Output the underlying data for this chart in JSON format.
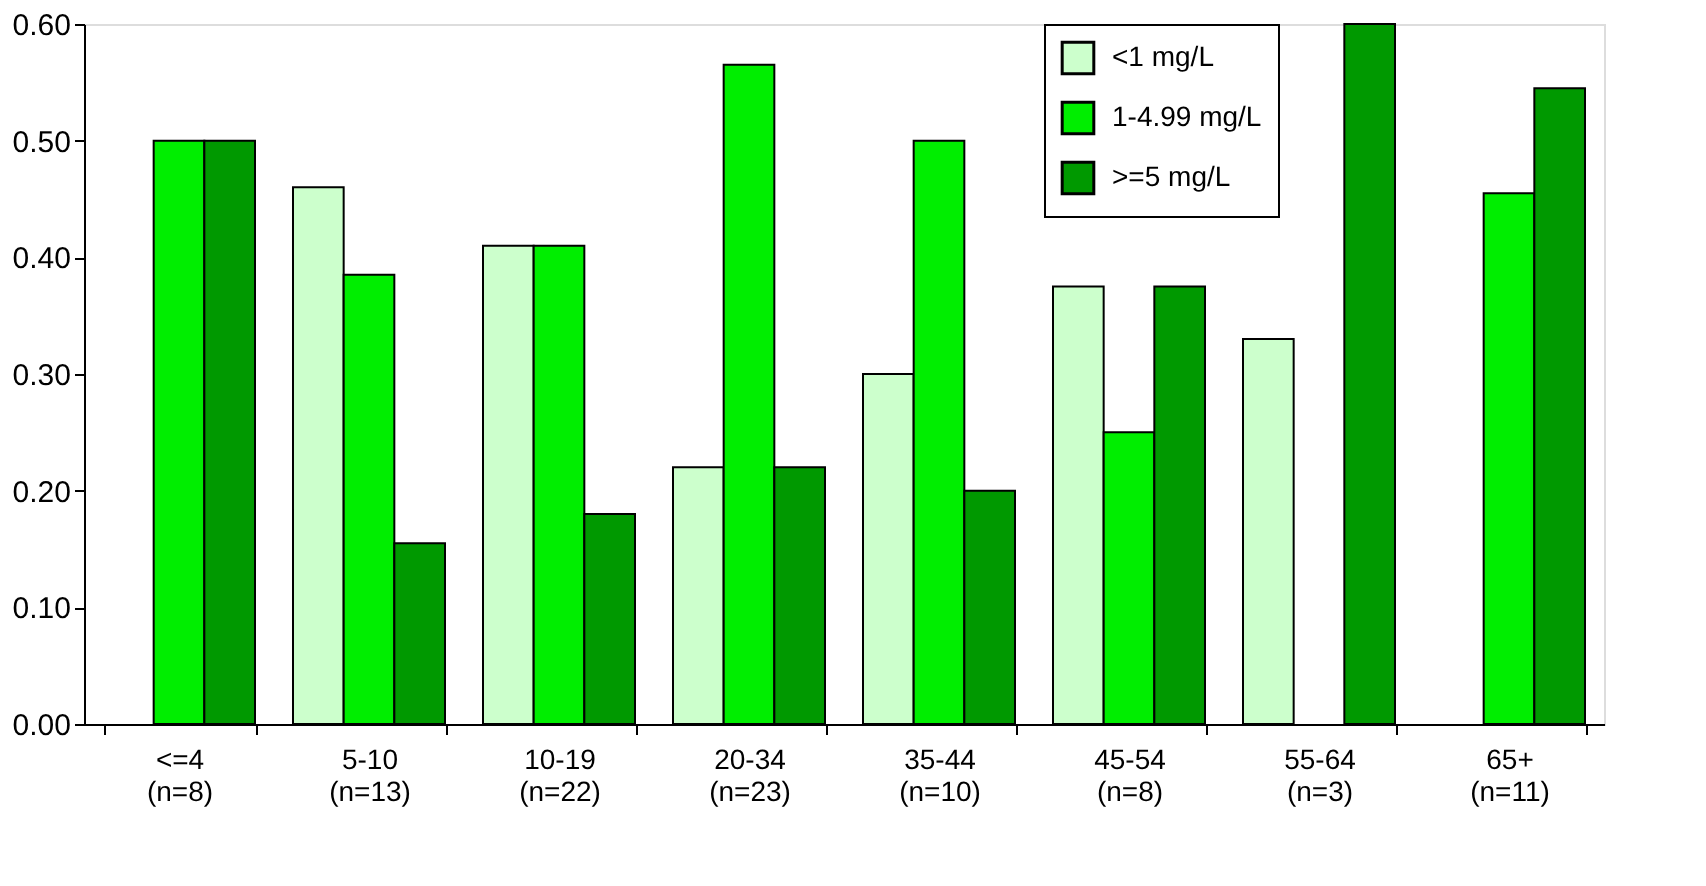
{
  "chart_data": {
    "type": "bar",
    "categories": [
      "<=4\n(n=8)",
      "5-10\n(n=13)",
      "10-19\n(n=22)",
      "20-34\n(n=23)",
      "35-44\n(n=10)",
      "45-54\n(n=8)",
      "55-64\n(n=3)",
      "65+\n(n=11)"
    ],
    "series": [
      {
        "name": "<1 mg/L",
        "color": "#ccffcc",
        "values": [
          null,
          0.46,
          0.41,
          0.22,
          0.3,
          0.375,
          0.33,
          null
        ]
      },
      {
        "name": "1-4.99 mg/L",
        "color": "#00ee00",
        "values": [
          0.5,
          0.385,
          0.41,
          0.565,
          0.5,
          0.25,
          null,
          0.455
        ]
      },
      {
        "name": ">=5 mg/L",
        "color": "#009900",
        "values": [
          0.5,
          0.155,
          0.18,
          0.22,
          0.2,
          0.375,
          0.6,
          0.545
        ]
      }
    ],
    "ylim": [
      0,
      0.6
    ],
    "yticks": [
      {
        "value": 0,
        "label": "0.00"
      },
      {
        "value": 0.1,
        "label": "0.10"
      },
      {
        "value": 0.2,
        "label": "0.20"
      },
      {
        "value": 0.3,
        "label": "0.30"
      },
      {
        "value": 0.4,
        "label": "0.40"
      },
      {
        "value": 0.5,
        "label": "0.50"
      },
      {
        "value": 0.6,
        "label": "0.60"
      }
    ],
    "grid": false,
    "legend": "top right"
  }
}
